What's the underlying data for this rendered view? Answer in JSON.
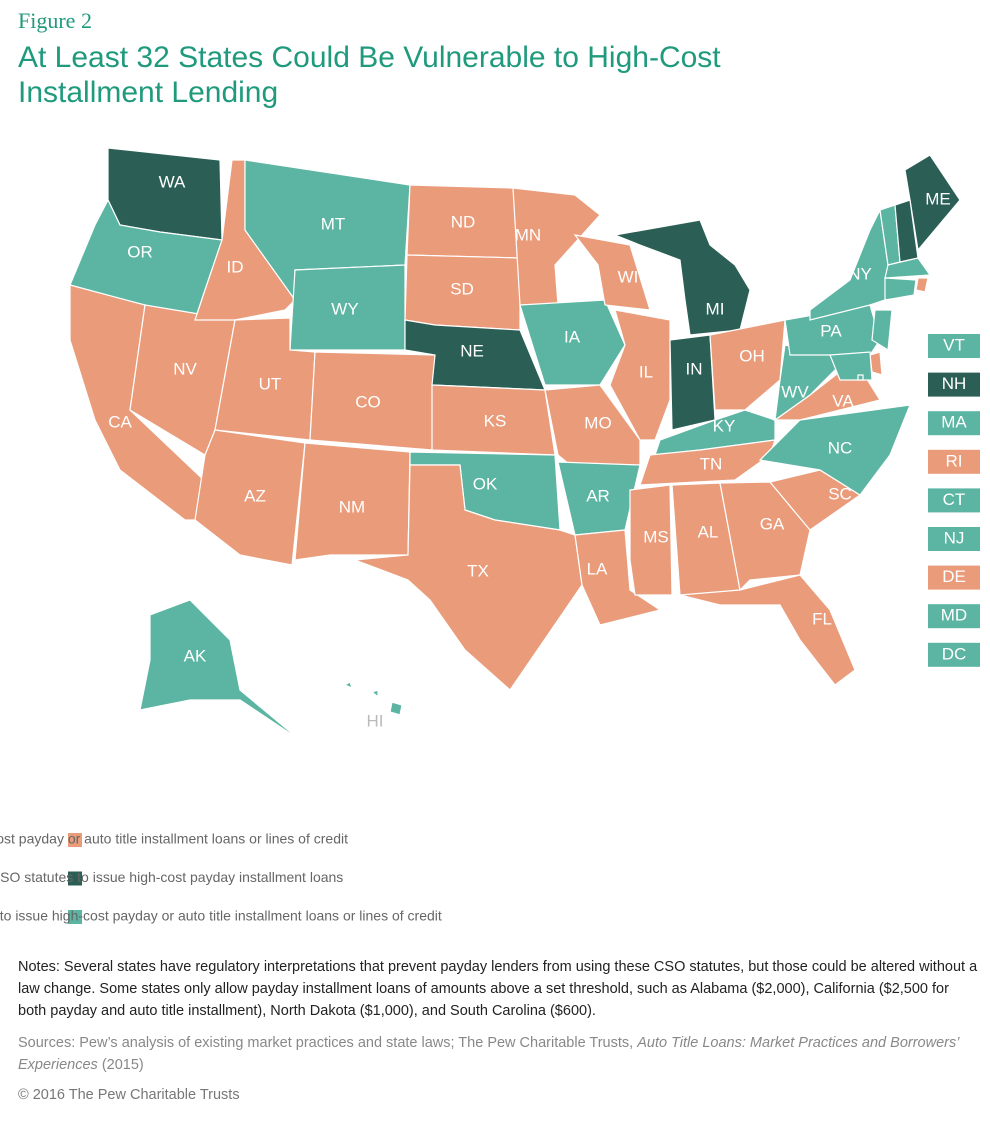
{
  "header": {
    "figure": "Figure 2",
    "title": "At Least 32 States Could Be Vulnerable to High-Cost Installment Lending"
  },
  "map": {
    "states": [
      {
        "label": "WA",
        "color": "#2b5f56"
      },
      {
        "label": "OR",
        "color": "#5bb5a2"
      },
      {
        "label": "CA",
        "color": "#e99b7a"
      },
      {
        "label": "NV",
        "color": "#e99b7a"
      },
      {
        "label": "ID",
        "color": "#e99b7a"
      },
      {
        "label": "MT",
        "color": "#5bb5a2"
      },
      {
        "label": "WY",
        "color": "#5bb5a2"
      },
      {
        "label": "UT",
        "color": "#e99b7a"
      },
      {
        "label": "CO",
        "color": "#e99b7a"
      },
      {
        "label": "AZ",
        "color": "#e99b7a"
      },
      {
        "label": "NM",
        "color": "#e99b7a"
      },
      {
        "label": "ND",
        "color": "#e99b7a"
      },
      {
        "label": "SD",
        "color": "#e99b7a"
      },
      {
        "label": "NE",
        "color": "#2b5f56"
      },
      {
        "label": "KS",
        "color": "#e99b7a"
      },
      {
        "label": "OK",
        "color": "#5bb5a2"
      },
      {
        "label": "TX",
        "color": "#e99b7a"
      },
      {
        "label": "MN",
        "color": "#e99b7a"
      },
      {
        "label": "IA",
        "color": "#5bb5a2"
      },
      {
        "label": "MO",
        "color": "#e99b7a"
      },
      {
        "label": "AR",
        "color": "#5bb5a2"
      },
      {
        "label": "LA",
        "color": "#e99b7a"
      },
      {
        "label": "WI",
        "color": "#e99b7a"
      },
      {
        "label": "IL",
        "color": "#e99b7a"
      },
      {
        "label": "MI",
        "color": "#2b5f56"
      },
      {
        "label": "IN",
        "color": "#2b5f56"
      },
      {
        "label": "OH",
        "color": "#e99b7a"
      },
      {
        "label": "KY",
        "color": "#5bb5a2"
      },
      {
        "label": "TN",
        "color": "#e99b7a"
      },
      {
        "label": "MS",
        "color": "#e99b7a"
      },
      {
        "label": "AL",
        "color": "#e99b7a"
      },
      {
        "label": "GA",
        "color": "#e99b7a"
      },
      {
        "label": "FL",
        "color": "#e99b7a"
      },
      {
        "label": "SC",
        "color": "#e99b7a"
      },
      {
        "label": "NC",
        "color": "#5bb5a2"
      },
      {
        "label": "VA",
        "color": "#e99b7a"
      },
      {
        "label": "WV",
        "color": "#5bb5a2"
      },
      {
        "label": "PA",
        "color": "#5bb5a2"
      },
      {
        "label": "NY",
        "color": "#5bb5a2"
      },
      {
        "label": "ME",
        "color": "#2b5f56"
      },
      {
        "label": "AK",
        "color": "#5bb5a2"
      },
      {
        "label": "HI",
        "color": "#5bb5a2"
      }
    ],
    "small_states": [
      {
        "label": "VT",
        "color": "#5bb5a2"
      },
      {
        "label": "NH",
        "color": "#2b5f56"
      },
      {
        "label": "MA",
        "color": "#5bb5a2"
      },
      {
        "label": "RI",
        "color": "#e99b7a"
      },
      {
        "label": "CT",
        "color": "#5bb5a2"
      },
      {
        "label": "NJ",
        "color": "#5bb5a2"
      },
      {
        "label": "DE",
        "color": "#e99b7a"
      },
      {
        "label": "MD",
        "color": "#5bb5a2"
      },
      {
        "label": "DC",
        "color": "#5bb5a2"
      }
    ]
  },
  "legend": [
    {
      "text": "Lenders are issuing high-cost payday or auto title installment loans or lines of credit",
      "color": "#e99b7a"
    },
    {
      "text": "Lenders could try to use CSO statutes to issue high-cost payday installment loans",
      "color": "#2b5f56"
    },
    {
      "text": "Lenders would need to change state laws to issue high-cost payday or auto title installment loans or lines of credit",
      "color": "#5bb5a2"
    }
  ],
  "notes": "Notes: Several states have regulatory interpretations that prevent payday lenders from using these CSO statutes, but those could be altered without a law change. Some states only allow payday installment loans of amounts above a set threshold, such as Alabama ($2,000), California ($2,500 for both payday and auto title installment), North Dakota ($1,000), and South Carolina ($600).",
  "sources": [
    "Sources: Pew’s analysis of existing market practices and state laws; The Pew Charitable Trusts, ",
    "Auto Title Loans: Market Practices and Borrowers’ Experiences",
    " (2015)"
  ],
  "copyright": "© 2016 The Pew Charitable Trusts"
}
